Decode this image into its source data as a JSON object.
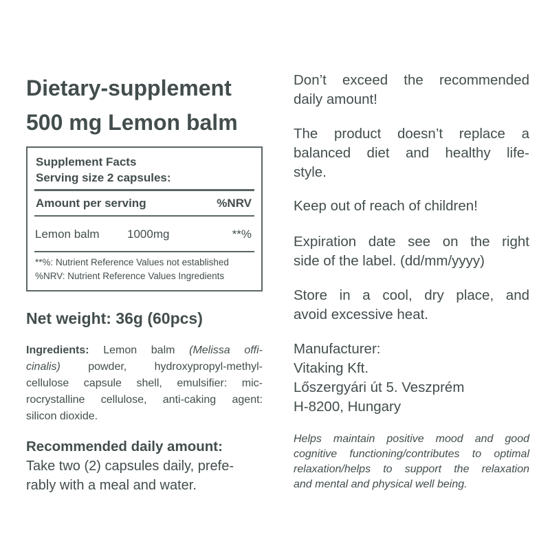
{
  "title": {
    "line1": "Dietary-supplement",
    "line2": "500 mg Lemon balm"
  },
  "facts": {
    "heading": "Supplement Facts",
    "serving": "Serving size 2 capsules:",
    "col_amount": "Amount per serving",
    "col_nrv": "%NRV",
    "row": {
      "name": "Lemon balm",
      "amount": "1000mg",
      "nrv": "**%"
    },
    "footnote1": "**%: Nutrient Reference Values not established",
    "footnote2": "%NRV: Nutrient Reference Values Ingredients"
  },
  "net_weight": "Net weight: 36g (60pcs)",
  "ingredients": {
    "label": "Ingredients:",
    "line1a": " Lemon balm ",
    "line1b": "(Melissa offi-",
    "line2a": "cinalis)",
    "line2b": " powder, hydroxypropyl-methyl-",
    "line3": "cellulose capsule shell, emulsifier: mic-",
    "line4": "rocrystalline cellulose, anti-caking agent:",
    "line5": "silicon dioxide."
  },
  "recommended": {
    "heading": "Recommended daily amount:",
    "line1": "Take two (2) capsules daily, prefe-",
    "line2": "rably with a meal and water."
  },
  "warnings": [
    [
      "Don’t exceed the recommended",
      "daily amount!"
    ],
    [
      "The product doesn’t replace a",
      "balanced diet and healthy life-",
      "style."
    ],
    [
      "Keep out of reach of children!"
    ],
    [
      "Expiration date see on the right",
      "side of the label. (dd/mm/yyyy)"
    ],
    [
      "Store in a cool, dry place, and",
      "avoid excessive heat."
    ],
    [
      "Manufacturer:",
      "Vitaking Kft.",
      "Lőszergyári út 5. Veszprém",
      "H-8200, Hungary"
    ]
  ],
  "claim": [
    "Helps maintain positive mood and good",
    "cognitive functioning/contributes to optimal",
    "relaxation/helps to support the relaxation",
    "and mental and physical well being."
  ]
}
